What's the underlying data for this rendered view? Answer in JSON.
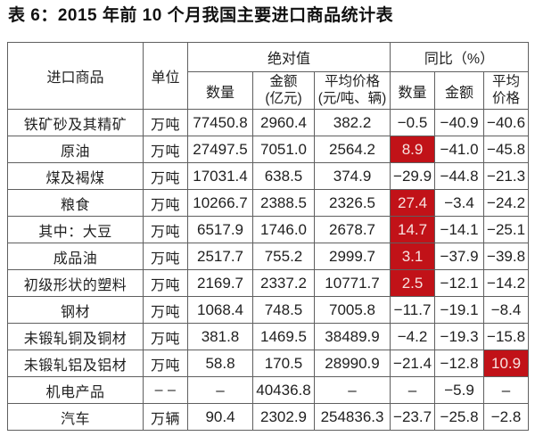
{
  "title": "表 6：2015 年前 10 个月我国主要进口商品统计表",
  "colors": {
    "highlight_bg": "#c11218",
    "highlight_text": "#f7e3e1",
    "border": "#5f5f5f",
    "text": "#1f1f1f"
  },
  "table": {
    "header": {
      "commodity": "进口商品",
      "unit": "单位",
      "absolute_group": "绝对值",
      "yoy_group": "同比（%）",
      "abs_quantity": "数量",
      "abs_amount": "金额\n(亿元)",
      "abs_avg_price": "平均价格\n(元/吨、辆)",
      "yoy_quantity": "数量",
      "yoy_amount": "金额",
      "yoy_avg_price": "平均\n价格"
    },
    "rows": [
      {
        "name": "铁矿砂及其精矿",
        "unit": "万吨",
        "qty": "77450.8",
        "amount": "2960.4",
        "avg_price": "382.2",
        "yoy_qty": "−0.5",
        "yoy_amount": "−40.9",
        "yoy_avg": "−40.6",
        "hl": []
      },
      {
        "name": "原油",
        "unit": "万吨",
        "qty": "27497.5",
        "amount": "7051.0",
        "avg_price": "2564.2",
        "yoy_qty": "8.9",
        "yoy_amount": "−41.0",
        "yoy_avg": "−45.8",
        "hl": [
          "yoy_qty"
        ]
      },
      {
        "name": "煤及褐煤",
        "unit": "万吨",
        "qty": "17031.4",
        "amount": "638.5",
        "avg_price": "374.9",
        "yoy_qty": "−29.9",
        "yoy_amount": "−44.8",
        "yoy_avg": "−21.3",
        "hl": []
      },
      {
        "name": "粮食",
        "unit": "万吨",
        "qty": "10266.7",
        "amount": "2388.5",
        "avg_price": "2326.5",
        "yoy_qty": "27.4",
        "yoy_amount": "−3.4",
        "yoy_avg": "−24.2",
        "hl": [
          "yoy_qty"
        ]
      },
      {
        "name": "其中：大豆",
        "unit": "万吨",
        "qty": "6517.9",
        "amount": "1746.0",
        "avg_price": "2678.7",
        "yoy_qty": "14.7",
        "yoy_amount": "−14.1",
        "yoy_avg": "−25.1",
        "hl": [
          "yoy_qty"
        ]
      },
      {
        "name": "成品油",
        "unit": "万吨",
        "qty": "2517.7",
        "amount": "755.2",
        "avg_price": "2999.7",
        "yoy_qty": "3.1",
        "yoy_amount": "−37.9",
        "yoy_avg": "−39.8",
        "hl": [
          "yoy_qty"
        ]
      },
      {
        "name": "初级形状的塑料",
        "unit": "万吨",
        "qty": "2169.7",
        "amount": "2337.2",
        "avg_price": "10771.7",
        "yoy_qty": "2.5",
        "yoy_amount": "−12.1",
        "yoy_avg": "−14.2",
        "hl": [
          "yoy_qty"
        ]
      },
      {
        "name": "钢材",
        "unit": "万吨",
        "qty": "1068.4",
        "amount": "748.5",
        "avg_price": "7005.8",
        "yoy_qty": "−11.7",
        "yoy_amount": "−19.1",
        "yoy_avg": "−8.4",
        "hl": []
      },
      {
        "name": "未锻轧铜及铜材",
        "unit": "万吨",
        "qty": "381.8",
        "amount": "1469.5",
        "avg_price": "38489.9",
        "yoy_qty": "−4.2",
        "yoy_amount": "−19.3",
        "yoy_avg": "−15.8",
        "hl": []
      },
      {
        "name": "未锻轧铝及铝材",
        "unit": "万吨",
        "qty": "58.8",
        "amount": "170.5",
        "avg_price": "28990.9",
        "yoy_qty": "−21.4",
        "yoy_amount": "−12.8",
        "yoy_avg": "10.9",
        "hl": [
          "yoy_avg"
        ]
      },
      {
        "name": "机电产品",
        "unit": "– –",
        "qty": "–",
        "amount": "40436.8",
        "avg_price": "–",
        "yoy_qty": "–",
        "yoy_amount": "−5.9",
        "yoy_avg": "–",
        "hl": []
      },
      {
        "name": "汽车",
        "unit": "万辆",
        "qty": "90.4",
        "amount": "2302.9",
        "avg_price": "254836.3",
        "yoy_qty": "−23.7",
        "yoy_amount": "−25.8",
        "yoy_avg": "−2.8",
        "hl": []
      }
    ]
  }
}
